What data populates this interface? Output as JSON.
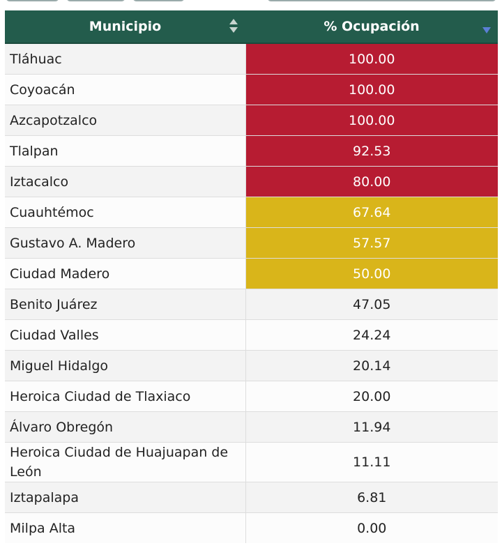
{
  "table": {
    "headers": [
      "Municipio",
      "% Ocupación"
    ],
    "rows": [
      {
        "municipio": "Tláhuac",
        "ocupacion": "100.00",
        "color": "#b71c32"
      },
      {
        "municipio": "Coyoacán",
        "ocupacion": "100.00",
        "color": "#b71c32"
      },
      {
        "municipio": "Azcapotzalco",
        "ocupacion": "100.00",
        "color": "#b71c32"
      },
      {
        "municipio": "Tlalpan",
        "ocupacion": "92.53",
        "color": "#b71c32"
      },
      {
        "municipio": "Iztacalco",
        "ocupacion": "80.00",
        "color": "#b71c32"
      },
      {
        "municipio": "Cuauhtémoc",
        "ocupacion": "67.64",
        "color": "#d9b51a"
      },
      {
        "municipio": "Gustavo A. Madero",
        "ocupacion": "57.57",
        "color": "#d9b51a"
      },
      {
        "municipio": "Ciudad Madero",
        "ocupacion": "50.00",
        "color": "#d9b51a"
      },
      {
        "municipio": "Benito Juárez",
        "ocupacion": "47.05"
      },
      {
        "municipio": "Ciudad Valles",
        "ocupacion": "24.24"
      },
      {
        "municipio": "Miguel Hidalgo",
        "ocupacion": "20.14"
      },
      {
        "municipio": "Heroica Ciudad de Tlaxiaco",
        "ocupacion": "20.00"
      },
      {
        "municipio": "Álvaro Obregón",
        "ocupacion": "11.94"
      },
      {
        "municipio": "Heroica Ciudad de Huajuapan de León",
        "ocupacion": "11.11"
      },
      {
        "municipio": "Iztapalapa",
        "ocupacion": "6.81"
      },
      {
        "municipio": "Milpa Alta",
        "ocupacion": "0.00"
      }
    ]
  }
}
